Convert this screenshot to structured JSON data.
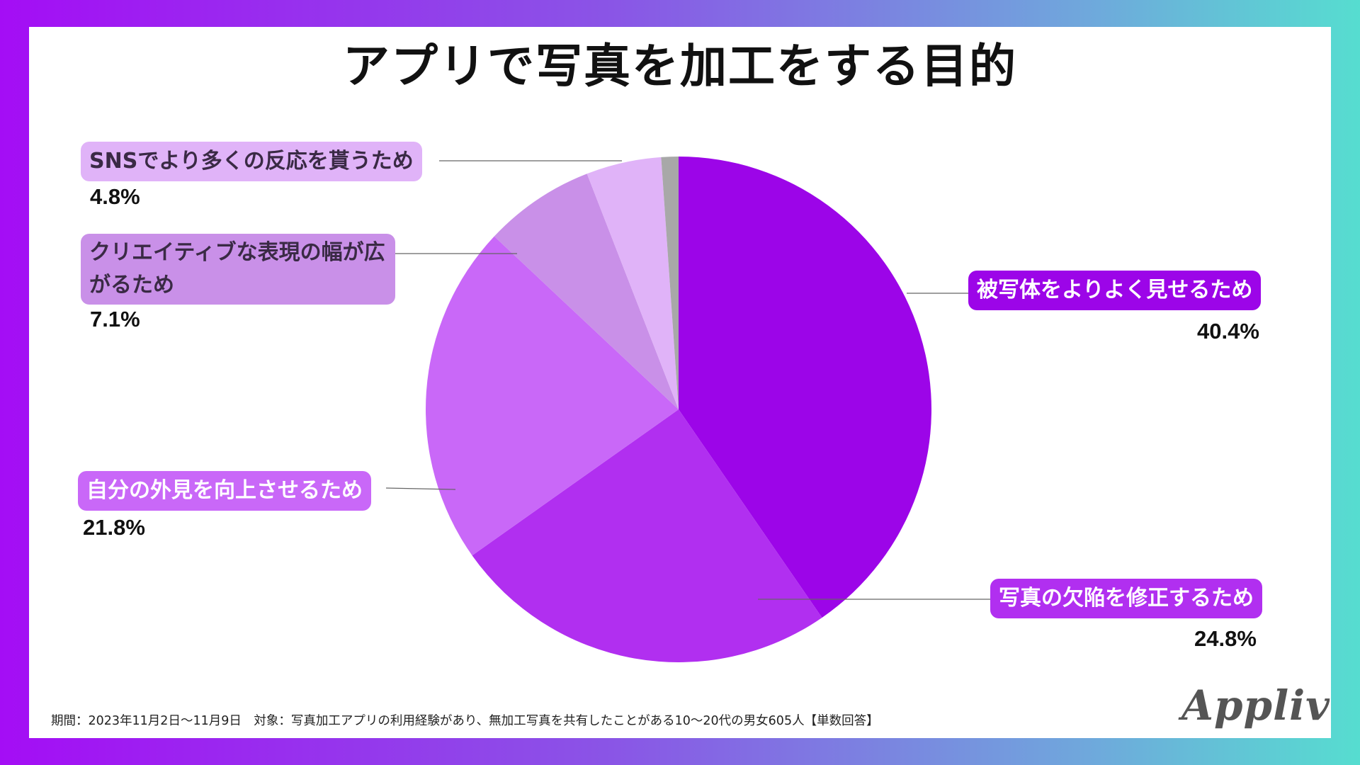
{
  "footnote": "期間：2023年11月2日〜11月9日　対象：写真加工アプリの利用経験があり、無加工写真を共有したことがある10〜20代の男女605人【単数回答】",
  "logo": "Appliv",
  "chart_data": {
    "type": "pie",
    "title": "アプリで写真を加工をする目的",
    "slices": [
      {
        "label": "被写体をよりよく見せるため",
        "value": 40.4,
        "value_label": "40.4%",
        "color": "#9c05e8",
        "label_bg": "#9c05e8",
        "label_color": "#ffffff"
      },
      {
        "label": "写真の欠陥を修正するため",
        "value": 24.8,
        "value_label": "24.8%",
        "color": "#b12ff0",
        "label_bg": "#b12ff0",
        "label_color": "#ffffff"
      },
      {
        "label": "自分の外見を向上させるため",
        "value": 21.8,
        "value_label": "21.8%",
        "color": "#c968f8",
        "label_bg": "#c968f8",
        "label_color": "#ffffff"
      },
      {
        "label": "クリエイティブな表現の幅が広がるため",
        "value": 7.1,
        "value_label": "7.1%",
        "color": "#c990e8",
        "label_bg": "#c990e8",
        "label_color": "#3a2a45"
      },
      {
        "label": "SNSでより多くの反応を貰うため",
        "value": 4.8,
        "value_label": "4.8%",
        "color": "#e0b3f8",
        "label_bg": "#e0b3f8",
        "label_color": "#3a2a45"
      },
      {
        "label": "",
        "value": 1.1,
        "value_label": "",
        "color": "#a8a8a8"
      }
    ]
  }
}
